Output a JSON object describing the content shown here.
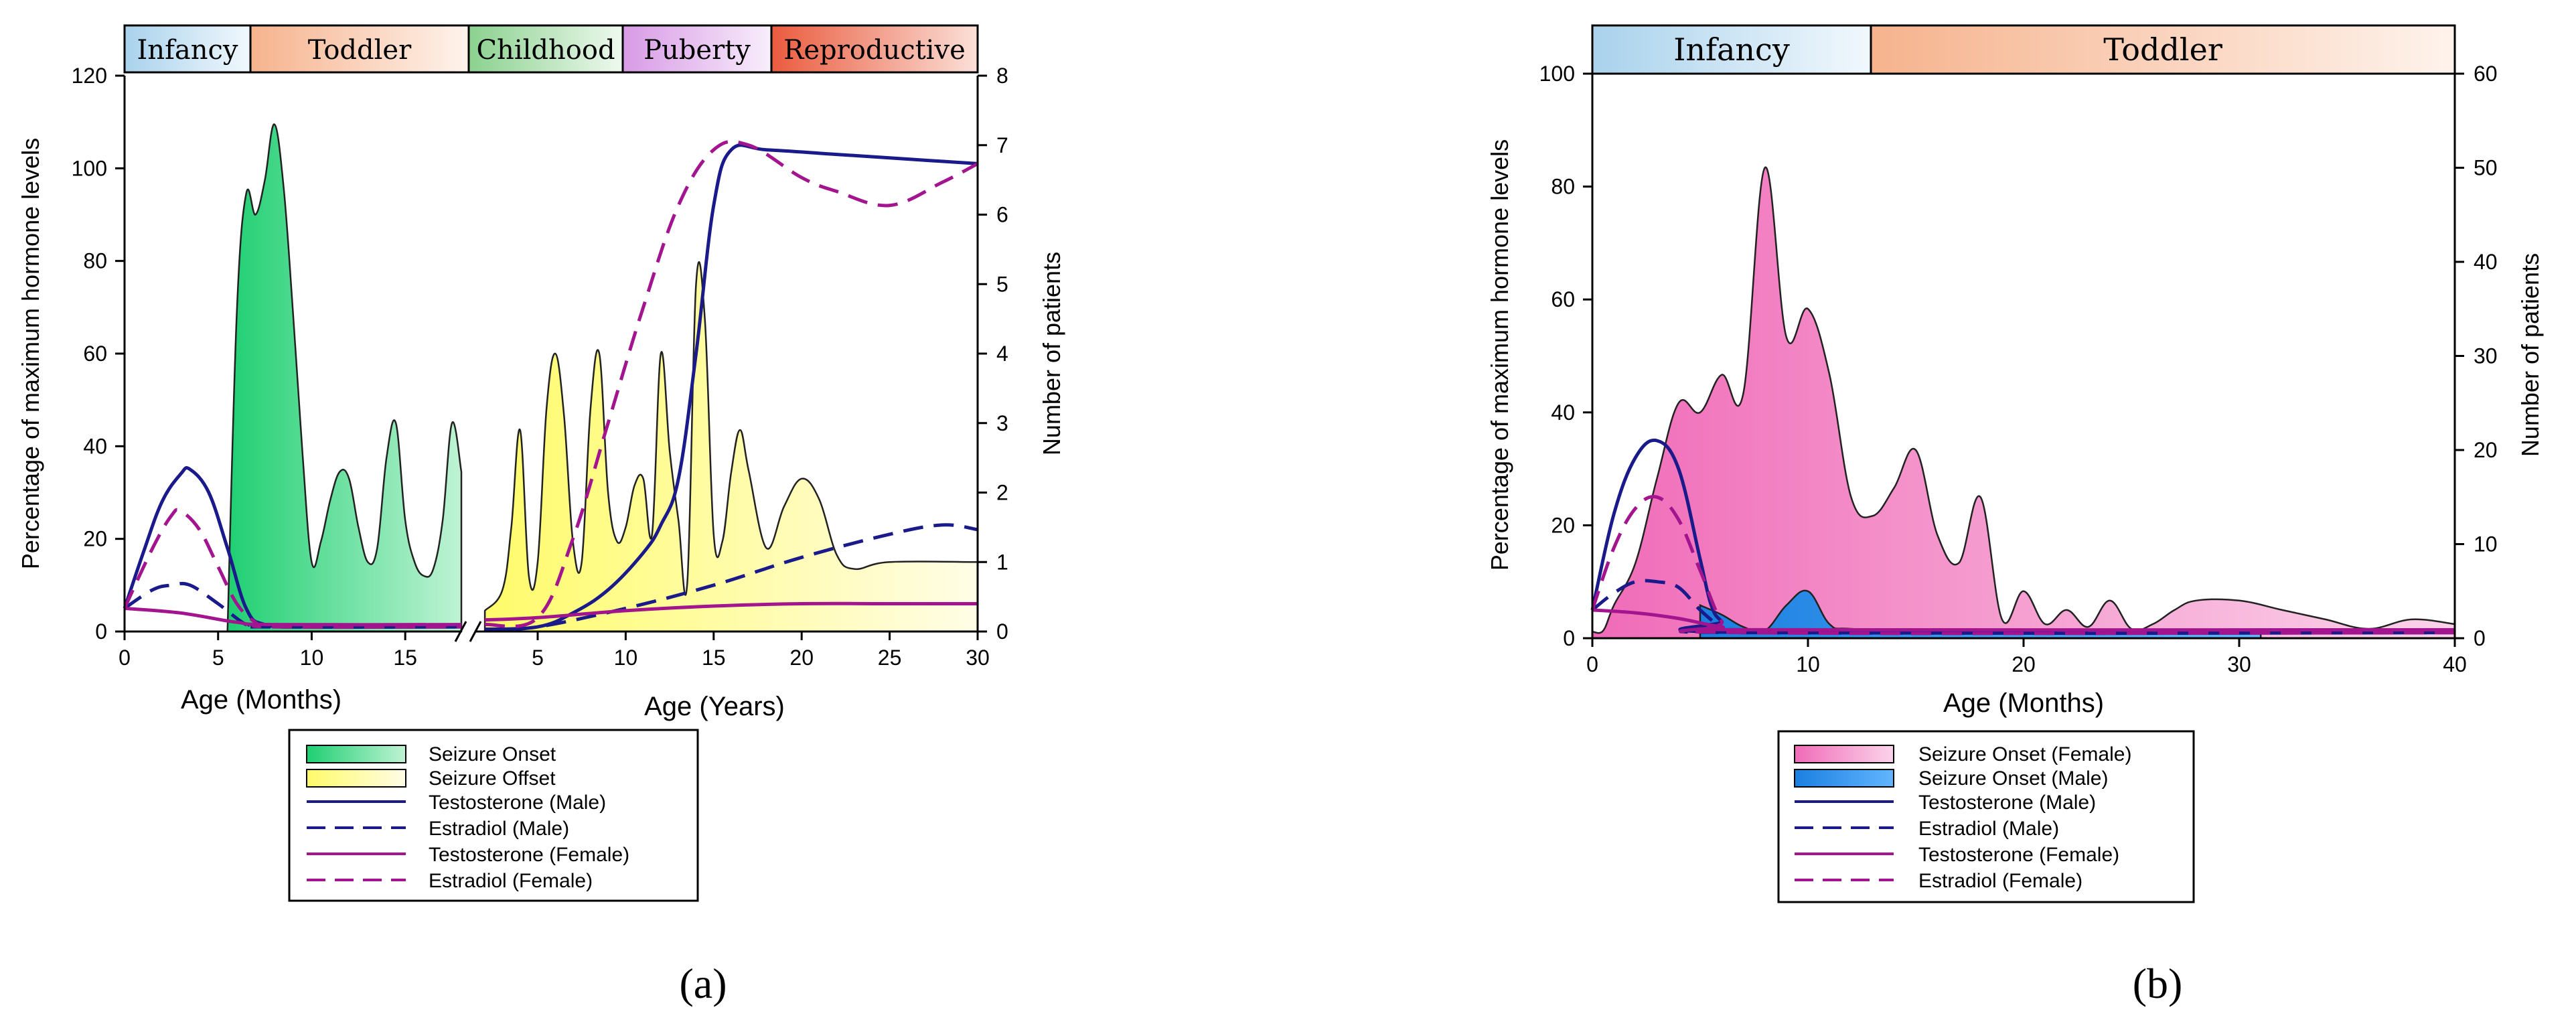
{
  "figure": {
    "panel_a_label": "(a)",
    "panel_b_label": "(b)"
  },
  "colors": {
    "testosterone_male": "#1a1a8a",
    "estradiol_male": "#1a1a8a",
    "testosterone_female": "#a3158f",
    "estradiol_female": "#a3158f",
    "seizure_onset_a": "#2ed47a",
    "seizure_offset_a": "#ffff88",
    "seizure_onset_female_b": "#f17cc0",
    "seizure_onset_male_b": "#1e8ce6"
  },
  "chart_data": [
    {
      "id": "a",
      "type": "area",
      "stages": [
        {
          "label": "Infancy",
          "color": "#a9d2ec"
        },
        {
          "label": "Toddler",
          "color": "#f6b38d"
        },
        {
          "label": "Childhood",
          "color": "#8bd18f"
        },
        {
          "label": "Puberty",
          "color": "#d89ae6"
        },
        {
          "label": "Reproductive",
          "color": "#ea5b3e"
        }
      ],
      "ylabel_left": "Percentage of maximum hormone levels",
      "ylabel_right": "Number of patients",
      "ylim_left": [
        0,
        120
      ],
      "ylim_right": [
        0,
        8
      ],
      "yticks_left": [
        "0",
        "20",
        "40",
        "60",
        "80",
        "100",
        "120"
      ],
      "yticks_right": [
        "0",
        "1",
        "2",
        "3",
        "4",
        "5",
        "6",
        "7",
        "8"
      ],
      "x_segments": [
        {
          "xlabel": "Age (Months)",
          "xlim": [
            0,
            18
          ],
          "ticks": [
            "0",
            "5",
            "10",
            "15"
          ]
        },
        {
          "xlabel": "Age (Years)",
          "xlim": [
            1.5,
            30
          ],
          "ticks": [
            "5",
            "10",
            "15",
            "20",
            "25",
            "30"
          ]
        }
      ],
      "legend": [
        "Seizure Onset",
        "Seizure Offset",
        "Testosterone (Male)",
        "Estradiol (Male)",
        "Testosterone (Female)",
        "Estradiol (Female)"
      ],
      "series": [
        {
          "name": "Seizure Onset",
          "kind": "area",
          "axis": "right",
          "segment": 0,
          "x": [
            5.5,
            6.0,
            6.5,
            7.0,
            7.5,
            8.0,
            8.5,
            9.0,
            9.5,
            10.0,
            10.5,
            11.0,
            11.5,
            12.0,
            12.5,
            13.0,
            13.5,
            14.0,
            14.5,
            15.0,
            15.5,
            16.0,
            16.5,
            17.0,
            17.5,
            18.0
          ],
          "y": [
            0.0,
            4.6,
            6.3,
            6.0,
            6.5,
            7.3,
            6.4,
            4.6,
            2.6,
            1.0,
            1.3,
            1.9,
            2.3,
            2.2,
            1.5,
            1.0,
            1.2,
            2.5,
            3.0,
            1.6,
            1.0,
            0.8,
            0.9,
            1.6,
            3.0,
            2.3
          ]
        },
        {
          "name": "Seizure Offset",
          "kind": "area",
          "axis": "right",
          "segment": 1,
          "x": [
            2,
            3,
            3.5,
            4,
            4.5,
            5,
            5.5,
            6,
            6.5,
            7,
            7.5,
            8,
            8.5,
            9,
            9.5,
            10,
            10.5,
            11,
            11.5,
            12,
            12.5,
            13,
            13.5,
            14,
            14.5,
            15,
            15.5,
            16,
            16.5,
            17,
            18,
            19,
            20,
            21,
            22,
            23,
            25,
            30
          ],
          "y": [
            0.3,
            0.6,
            1.5,
            2.9,
            0.8,
            1.0,
            3.2,
            4.0,
            3.1,
            1.3,
            1.0,
            3.2,
            4.0,
            2.0,
            1.3,
            1.5,
            2.1,
            2.2,
            1.4,
            4.0,
            2.6,
            1.6,
            0.7,
            5.0,
            4.5,
            1.4,
            1.3,
            2.3,
            2.9,
            2.3,
            1.2,
            1.8,
            2.2,
            1.9,
            1.1,
            0.9,
            1.0,
            1.0
          ]
        },
        {
          "name": "Testosterone (Male)",
          "kind": "line",
          "style": "solid",
          "axis": "left",
          "points": [
            [
              0,
              0,
              5
            ],
            [
              0,
              1,
              17
            ],
            [
              0,
              2,
              28
            ],
            [
              0,
              3,
              34
            ],
            [
              0,
              3.5,
              35
            ],
            [
              0,
              4.5,
              30
            ],
            [
              0,
              5.5,
              18
            ],
            [
              0,
              6.5,
              5
            ],
            [
              0,
              7.5,
              1.5
            ],
            [
              0,
              10,
              1
            ],
            [
              0,
              18,
              1
            ],
            [
              1,
              2,
              0.5
            ],
            [
              1,
              5,
              1
            ],
            [
              1,
              7,
              4
            ],
            [
              1,
              9,
              9
            ],
            [
              1,
              11,
              17
            ],
            [
              1,
              12,
              23
            ],
            [
              1,
              13,
              33
            ],
            [
              1,
              14,
              60
            ],
            [
              1,
              15,
              92
            ],
            [
              1,
              16,
              104
            ],
            [
              1,
              18,
              104
            ],
            [
              1,
              22,
              103
            ],
            [
              1,
              26,
              102
            ],
            [
              1,
              30,
              101
            ]
          ]
        },
        {
          "name": "Estradiol (Male)",
          "kind": "line",
          "style": "dashed",
          "axis": "left",
          "points": [
            [
              0,
              0,
              5
            ],
            [
              0,
              1.5,
              9
            ],
            [
              0,
              2.5,
              10
            ],
            [
              0,
              3.5,
              10
            ],
            [
              0,
              5,
              6
            ],
            [
              0,
              6.5,
              1.5
            ],
            [
              0,
              7.5,
              1
            ],
            [
              0,
              18,
              1
            ],
            [
              1,
              2,
              0.3
            ],
            [
              1,
              5,
              1
            ],
            [
              1,
              10,
              5
            ],
            [
              1,
              15,
              10
            ],
            [
              1,
              20,
              16
            ],
            [
              1,
              25,
              21
            ],
            [
              1,
              28,
              23
            ],
            [
              1,
              30,
              22
            ]
          ]
        },
        {
          "name": "Testosterone (Female)",
          "kind": "line",
          "style": "solid",
          "axis": "left",
          "points": [
            [
              0,
              0,
              5
            ],
            [
              0,
              3,
              4
            ],
            [
              0,
              6,
              2
            ],
            [
              0,
              8,
              1.5
            ],
            [
              0,
              18,
              1.5
            ],
            [
              1,
              2,
              2.5
            ],
            [
              1,
              5,
              3
            ],
            [
              1,
              10,
              4.5
            ],
            [
              1,
              15,
              5.5
            ],
            [
              1,
              20,
              6
            ],
            [
              1,
              25,
              6
            ],
            [
              1,
              30,
              6
            ]
          ]
        },
        {
          "name": "Estradiol (Female)",
          "kind": "line",
          "style": "dashed",
          "axis": "left",
          "points": [
            [
              0,
              0,
              5
            ],
            [
              0,
              1.5,
              18
            ],
            [
              0,
              2.5,
              25
            ],
            [
              0,
              3,
              26
            ],
            [
              0,
              4,
              22
            ],
            [
              0,
              5,
              14
            ],
            [
              0,
              6,
              6
            ],
            [
              0,
              7,
              2
            ],
            [
              0,
              8,
              1
            ],
            [
              0,
              18,
              1
            ],
            [
              1,
              2,
              1.5
            ],
            [
              1,
              5,
              3
            ],
            [
              1,
              7,
              20
            ],
            [
              1,
              9,
              45
            ],
            [
              1,
              11,
              70
            ],
            [
              1,
              13,
              92
            ],
            [
              1,
              15,
              104
            ],
            [
              1,
              17,
              105
            ],
            [
              1,
              20,
              98
            ],
            [
              1,
              22,
              95
            ],
            [
              1,
              25,
              92
            ],
            [
              1,
              28,
              97
            ],
            [
              1,
              30,
              101
            ]
          ]
        }
      ]
    },
    {
      "id": "b",
      "type": "area",
      "stages": [
        {
          "label": "Infancy",
          "color": "#a9d2ec"
        },
        {
          "label": "Toddler",
          "color": "#f6b38d"
        }
      ],
      "ylabel_left": "Percentage of maximum hormone levels",
      "ylabel_right": "Number of patients",
      "xlabel": "Age (Months)",
      "xlim": [
        0,
        40
      ],
      "xticks": [
        "0",
        "10",
        "20",
        "30",
        "40"
      ],
      "ylim_left": [
        0,
        100
      ],
      "ylim_right": [
        0,
        60
      ],
      "yticks_left": [
        "0",
        "20",
        "40",
        "60",
        "80",
        "100"
      ],
      "yticks_right": [
        "0",
        "10",
        "20",
        "30",
        "40",
        "50",
        "60"
      ],
      "legend": [
        "Seizure Onset (Female)",
        "Seizure Onset (Male)",
        "Testosterone (Male)",
        "Estradiol (Male)",
        "Testosterone (Female)",
        "Estradiol (Female)"
      ],
      "series": [
        {
          "name": "Seizure Onset (Female)",
          "kind": "area",
          "axis": "right",
          "x": [
            0,
            0.5,
            1,
            2,
            3,
            4,
            5,
            6,
            7,
            8,
            9,
            10,
            11,
            12,
            13,
            14,
            15,
            16,
            17,
            18,
            19,
            20,
            21,
            22,
            23,
            24,
            25,
            26,
            27,
            28,
            30,
            32,
            34,
            36,
            38,
            40
          ],
          "y": [
            0.7,
            0.8,
            3.5,
            8,
            17,
            25,
            24,
            28,
            26,
            50,
            32,
            35,
            28,
            15,
            13,
            16,
            20,
            11,
            8,
            15,
            2,
            5,
            1.5,
            3,
            1.2,
            4,
            1,
            1.5,
            3,
            4,
            4,
            3,
            2,
            1,
            2,
            1.5
          ]
        },
        {
          "name": "Seizure Onset (Male)",
          "kind": "area",
          "axis": "right",
          "x": [
            5,
            6,
            7,
            8,
            9,
            10,
            11,
            12,
            16,
            24,
            31
          ],
          "y": [
            3.5,
            2.5,
            1.2,
            0.8,
            3.5,
            5,
            1.5,
            1,
            0.8,
            0.8,
            0.5
          ]
        },
        {
          "name": "Testosterone (Male)",
          "kind": "line",
          "style": "solid",
          "axis": "left",
          "points": [
            [
              0,
              5
            ],
            [
              1,
              22
            ],
            [
              2,
              32
            ],
            [
              3,
              35
            ],
            [
              4,
              30
            ],
            [
              5,
              14
            ],
            [
              5.5,
              6
            ],
            [
              6,
              3
            ],
            [
              7,
              1
            ],
            [
              40,
              1
            ]
          ]
        },
        {
          "name": "Estradiol (Male)",
          "kind": "line",
          "style": "dashed",
          "axis": "left",
          "points": [
            [
              0,
              5
            ],
            [
              1,
              8
            ],
            [
              2,
              10
            ],
            [
              3,
              10
            ],
            [
              4,
              9
            ],
            [
              5,
              5
            ],
            [
              6,
              2
            ],
            [
              7,
              1
            ],
            [
              40,
              1
            ]
          ]
        },
        {
          "name": "Testosterone (Female)",
          "kind": "line",
          "style": "solid",
          "axis": "left",
          "points": [
            [
              0,
              5
            ],
            [
              2,
              4.5
            ],
            [
              4,
              3.5
            ],
            [
              6,
              2
            ],
            [
              8,
              1.5
            ],
            [
              40,
              1.5
            ]
          ]
        },
        {
          "name": "Estradiol (Female)",
          "kind": "line",
          "style": "dashed",
          "axis": "left",
          "points": [
            [
              0,
              5
            ],
            [
              1,
              16
            ],
            [
              2,
              23
            ],
            [
              3,
              25
            ],
            [
              4,
              21
            ],
            [
              5,
              12
            ],
            [
              6,
              3
            ],
            [
              7,
              1
            ],
            [
              40,
              1
            ]
          ]
        }
      ]
    }
  ]
}
